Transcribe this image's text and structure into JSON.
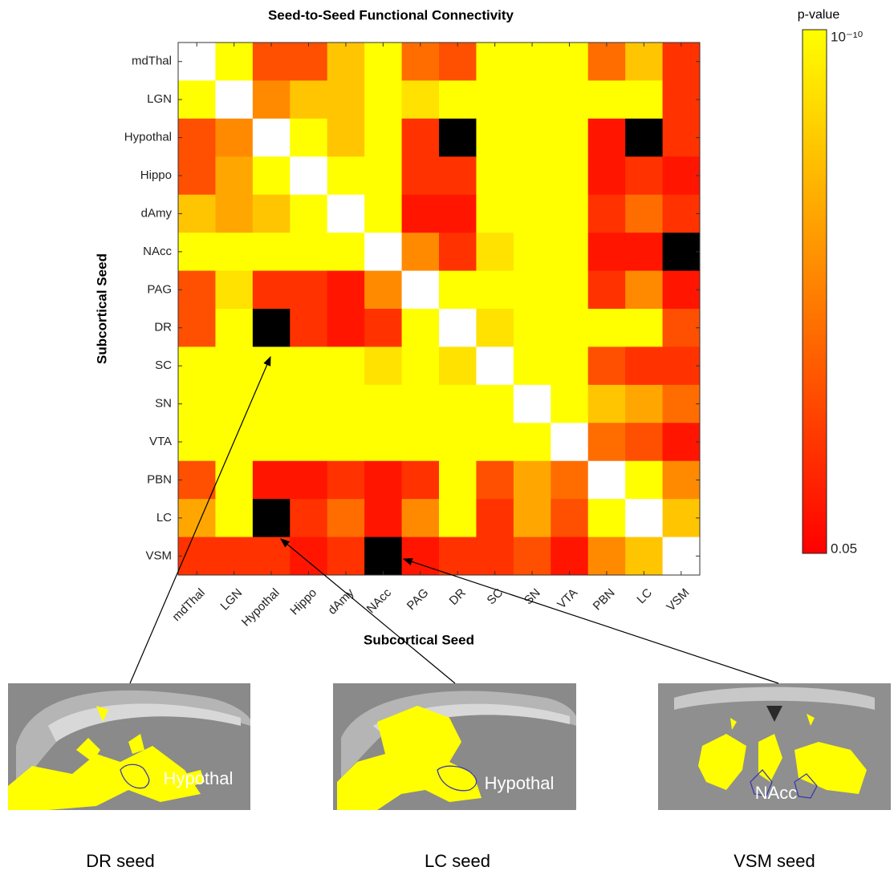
{
  "chart_data": {
    "type": "heatmap",
    "title": "Seed-to-Seed Functional Connectivity",
    "xlabel": "Subcortical Seed",
    "ylabel": "Subcortical Seed",
    "categories": [
      "mdThal",
      "LGN",
      "Hypothal",
      "Hippo",
      "dAmy",
      "NAcc",
      "PAG",
      "DR",
      "SC",
      "SN",
      "VTA",
      "PBN",
      "LC",
      "VSM"
    ],
    "values": [
      [
        null,
        1e-10,
        0.0001,
        0.0001,
        1e-08,
        1e-10,
        1e-05,
        0.0001,
        1e-10,
        1e-10,
        1e-10,
        1e-05,
        1e-08,
        0.001
      ],
      [
        1e-10,
        null,
        1e-06,
        1e-08,
        1e-08,
        1e-10,
        1e-09,
        1e-10,
        1e-10,
        1e-10,
        1e-10,
        1e-10,
        1e-10,
        0.001
      ],
      [
        0.0001,
        1e-06,
        null,
        1e-10,
        1e-08,
        1e-10,
        0.001,
        null,
        1e-10,
        1e-10,
        1e-10,
        0.01,
        null,
        0.001
      ],
      [
        0.0001,
        1e-07,
        1e-10,
        null,
        1e-10,
        1e-10,
        0.001,
        0.001,
        1e-10,
        1e-10,
        1e-10,
        0.01,
        0.001,
        0.01
      ],
      [
        1e-08,
        1e-07,
        1e-08,
        1e-10,
        null,
        1e-10,
        0.01,
        0.01,
        1e-10,
        1e-10,
        1e-10,
        0.001,
        1e-05,
        0.001
      ],
      [
        1e-10,
        1e-10,
        1e-10,
        1e-10,
        1e-10,
        null,
        1e-06,
        0.001,
        1e-09,
        1e-10,
        1e-10,
        0.01,
        0.01,
        null
      ],
      [
        0.0001,
        1e-09,
        0.001,
        0.001,
        0.01,
        1e-06,
        null,
        1e-10,
        1e-10,
        1e-10,
        1e-10,
        0.001,
        1e-06,
        0.01
      ],
      [
        0.0001,
        1e-10,
        null,
        0.001,
        0.01,
        0.001,
        1e-10,
        null,
        1e-09,
        1e-10,
        1e-10,
        1e-10,
        1e-10,
        0.0001
      ],
      [
        1e-10,
        1e-10,
        1e-10,
        1e-10,
        1e-10,
        1e-09,
        1e-10,
        1e-09,
        null,
        1e-10,
        1e-10,
        0.0001,
        0.001,
        0.001
      ],
      [
        1e-10,
        1e-10,
        1e-10,
        1e-10,
        1e-10,
        1e-10,
        1e-10,
        1e-10,
        1e-10,
        null,
        1e-10,
        1e-08,
        1e-07,
        1e-05
      ],
      [
        1e-10,
        1e-10,
        1e-10,
        1e-10,
        1e-10,
        1e-10,
        1e-10,
        1e-10,
        1e-10,
        1e-10,
        null,
        1e-05,
        0.0001,
        0.01
      ],
      [
        0.0001,
        1e-10,
        0.01,
        0.01,
        0.001,
        0.01,
        0.001,
        1e-10,
        0.0001,
        1e-07,
        1e-05,
        null,
        1e-10,
        1e-06
      ],
      [
        1e-07,
        1e-10,
        null,
        0.001,
        1e-05,
        0.01,
        1e-06,
        1e-10,
        0.001,
        1e-07,
        0.0001,
        1e-10,
        null,
        1e-08
      ],
      [
        0.001,
        0.001,
        0.001,
        0.01,
        0.001,
        null,
        0.01,
        0.001,
        0.001,
        0.0001,
        0.01,
        1e-06,
        1e-08,
        null
      ]
    ],
    "colorbar_label": "p-value",
    "colorbar_lim": [
      0.05,
      1e-10
    ],
    "colorbar_ticks": [
      {
        "value": 1e-10,
        "label": "10⁻¹⁰"
      },
      0.05
    ],
    "colorbar_scale": "log",
    "colormap": [
      "#ff0000",
      "#ff8000",
      "#ffff00"
    ],
    "missing_color": "#000000",
    "diagonal_color": "#ffffff"
  },
  "panels": [
    {
      "overlay_label": "Hypothal",
      "caption": "DR seed"
    },
    {
      "overlay_label": "Hypothal",
      "caption": "LC seed"
    },
    {
      "overlay_label": "NAcc",
      "caption": "VSM seed"
    }
  ]
}
